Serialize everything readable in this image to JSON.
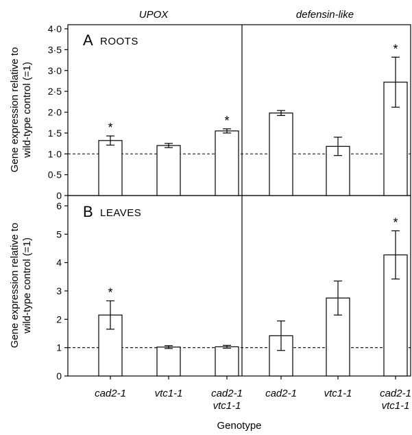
{
  "chart_data": [
    {
      "panel": "A",
      "type": "bar",
      "panel_label": "ROOTS",
      "ylabel_lines": [
        "Gene expression relative to",
        "wild-type control (=1)"
      ],
      "yticks": [
        "0",
        "0·5",
        "1·0",
        "1·5",
        "2·0",
        "2·5",
        "3·0",
        "3·5",
        "4·0"
      ],
      "ylim": [
        0,
        4
      ],
      "reference_line": 1,
      "groups": [
        "UPOX",
        "defensin-like"
      ],
      "categories": [
        "cad2-1",
        "vtc1-1",
        "cad2-1 vtc1-1"
      ],
      "series": [
        {
          "name": "UPOX",
          "values": [
            1.32,
            1.2,
            1.55
          ],
          "errors": [
            0.11,
            0.05,
            0.05
          ],
          "significant": [
            true,
            false,
            true
          ]
        },
        {
          "name": "defensin-like",
          "values": [
            1.98,
            1.18,
            2.72
          ],
          "errors": [
            0.06,
            0.22,
            0.6
          ],
          "significant": [
            false,
            false,
            true
          ]
        }
      ]
    },
    {
      "panel": "B",
      "type": "bar",
      "panel_label": "LEAVES",
      "ylabel_lines": [
        "Gene expression relative to",
        "wild-type control (=1)"
      ],
      "yticks": [
        "0",
        "1",
        "2",
        "3",
        "4",
        "5",
        "6"
      ],
      "ylim": [
        0,
        6.5
      ],
      "reference_line": 1,
      "groups": [
        "UPOX",
        "defensin-like"
      ],
      "categories": [
        "cad2-1",
        "vtc1-1",
        "cad2-1 vtc1-1"
      ],
      "series": [
        {
          "name": "UPOX",
          "values": [
            2.15,
            1.02,
            1.03
          ],
          "errors": [
            0.5,
            0.05,
            0.05
          ],
          "significant": [
            true,
            false,
            false
          ]
        },
        {
          "name": "defensin-like",
          "values": [
            1.42,
            2.75,
            4.27
          ],
          "errors": [
            0.52,
            0.6,
            0.85
          ],
          "significant": [
            false,
            false,
            true
          ]
        }
      ]
    }
  ],
  "x_categories_display": [
    [
      "cad2-1"
    ],
    [
      "vtc1-1"
    ],
    [
      "cad2-1",
      "vtc1-1"
    ],
    [
      "cad2-1"
    ],
    [
      "vtc1-1"
    ],
    [
      "cad2-1",
      "vtc1-1"
    ]
  ],
  "xlabel": "Genotype",
  "significance_marker": "*"
}
